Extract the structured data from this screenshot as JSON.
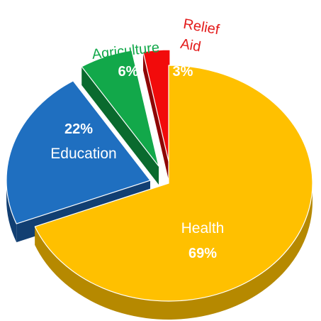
{
  "chart_data": {
    "type": "pie",
    "title": "",
    "style": "3D exploded pie",
    "slices": [
      {
        "label": "Health",
        "value": 69,
        "value_label": "69%",
        "color": "#FFC000",
        "side_color": "#B68900"
      },
      {
        "label": "Education",
        "value": 22,
        "value_label": "22%",
        "color": "#1F6FC0",
        "side_color": "#123F72"
      },
      {
        "label": "Agriculture",
        "value": 6,
        "value_label": "6%",
        "color": "#12A84A",
        "side_color": "#0A6A2E"
      },
      {
        "label": "Relief Aid",
        "label_lines": [
          "Relief",
          "Aid"
        ],
        "value": 3,
        "value_label": "3%",
        "color": "#F20B0B",
        "side_color": "#8E0606"
      }
    ],
    "label_colors": {
      "Agriculture": "#12A84A",
      "Relief Aid": "#E31B1B"
    }
  }
}
